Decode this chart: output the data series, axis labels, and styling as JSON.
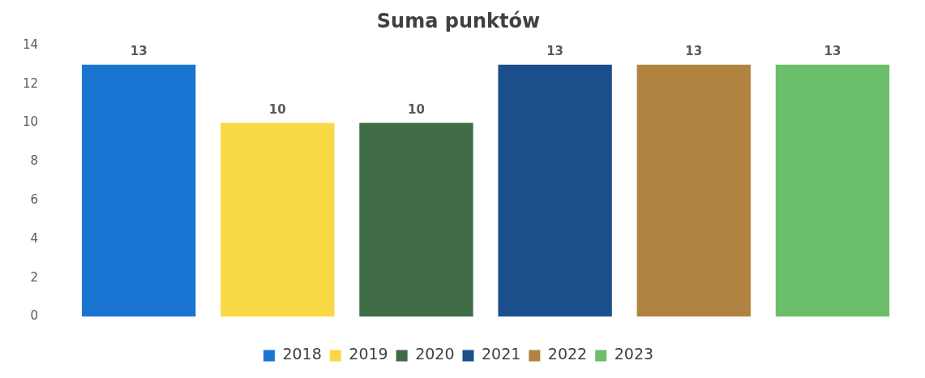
{
  "chart_data": {
    "type": "bar",
    "title": "Suma punktów",
    "categories": [
      null
    ],
    "series": [
      {
        "name": "2018",
        "color": "#1a75d2",
        "values": [
          13
        ]
      },
      {
        "name": "2019",
        "color": "#f9d846",
        "values": [
          10
        ]
      },
      {
        "name": "2020",
        "color": "#3f6b45",
        "values": [
          10
        ]
      },
      {
        "name": "2021",
        "color": "#1b4f8c",
        "values": [
          13
        ]
      },
      {
        "name": "2022",
        "color": "#b08440",
        "values": [
          13
        ]
      },
      {
        "name": "2023",
        "color": "#6cbf6a",
        "values": [
          13
        ]
      }
    ],
    "ylim": [
      0,
      14
    ],
    "yticks": [
      0,
      2,
      4,
      6,
      8,
      10,
      12,
      14
    ],
    "grid": false,
    "legend": "bottom",
    "data_labels": true
  }
}
